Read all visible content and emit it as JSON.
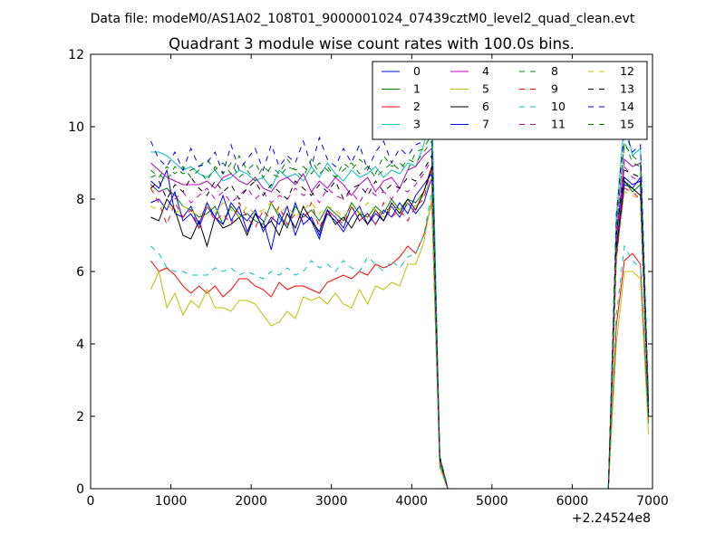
{
  "supertitle": "Data file: modeM0/AS1A02_108T01_9000001024_07439cztM0_level2_quad_clean.evt",
  "chart_data": {
    "type": "line",
    "title": "Quadrant 3 module wise count rates with 100.0s bins.",
    "xlabel": "",
    "ylabel": "",
    "x_offset_label": "+2.24524e8",
    "xlim": [
      0,
      7000
    ],
    "ylim": [
      0,
      12
    ],
    "xticks": [
      0,
      1000,
      2000,
      3000,
      4000,
      5000,
      6000,
      7000
    ],
    "yticks": [
      0,
      2,
      4,
      6,
      8,
      10,
      12
    ],
    "grid": false,
    "legend": {
      "placement": "top-right",
      "columns": 4
    },
    "x": [
      750,
      850,
      950,
      1050,
      1150,
      1250,
      1350,
      1450,
      1550,
      1650,
      1750,
      1850,
      1950,
      2050,
      2150,
      2250,
      2350,
      2450,
      2550,
      2650,
      2750,
      2850,
      2950,
      3050,
      3150,
      3250,
      3350,
      3450,
      3550,
      3650,
      3750,
      3850,
      3950,
      4050,
      4150,
      4250,
      4350,
      4450,
      4550,
      4650,
      4750,
      4850,
      4950,
      5050,
      5150,
      5250,
      5350,
      5450,
      5550,
      5650,
      5750,
      5850,
      5950,
      6050,
      6150,
      6250,
      6350,
      6450,
      6550,
      6650,
      6750,
      6850,
      6950
    ],
    "series": [
      {
        "name": "0",
        "color": "#0000ff",
        "style": "solid",
        "values": [
          8.5,
          8.3,
          8.8,
          7.6,
          7.5,
          7.8,
          7.3,
          7.9,
          7.5,
          8.1,
          7.4,
          7.8,
          7.1,
          7.6,
          7.4,
          6.6,
          7.6,
          7.2,
          7.9,
          7.3,
          7.5,
          7.0,
          7.6,
          7.4,
          7.1,
          7.5,
          7.8,
          7.3,
          7.6,
          7.4,
          7.8,
          7.5,
          7.9,
          7.6,
          7.9,
          8.6,
          0.8,
          0,
          0,
          0,
          0,
          0,
          0,
          0,
          0,
          0,
          0,
          0,
          0,
          0,
          0,
          0,
          0,
          0,
          0,
          0,
          0,
          0,
          6.5,
          8.4,
          8.3,
          8.6,
          2.2
        ]
      },
      {
        "name": "1",
        "color": "#008000",
        "style": "solid",
        "values": [
          8.4,
          8.2,
          8.3,
          8.1,
          7.8,
          7.7,
          7.5,
          7.6,
          7.8,
          7.3,
          7.8,
          7.5,
          7.6,
          7.4,
          7.3,
          7.9,
          7.5,
          7.2,
          7.8,
          7.5,
          7.7,
          7.4,
          7.8,
          7.6,
          7.4,
          7.9,
          7.6,
          7.5,
          7.8,
          7.6,
          8.0,
          7.7,
          8.0,
          7.9,
          8.2,
          8.8,
          0.7,
          0,
          0,
          0,
          0,
          0,
          0,
          0,
          0,
          0,
          0,
          0,
          0,
          0,
          0,
          0,
          0,
          0,
          0,
          0,
          0,
          0,
          6.3,
          8.5,
          8.2,
          8.4,
          2.1
        ]
      },
      {
        "name": "2",
        "color": "#ff0000",
        "style": "solid",
        "values": [
          6.3,
          6.0,
          6.1,
          5.9,
          5.6,
          5.4,
          5.6,
          5.4,
          5.6,
          5.3,
          5.5,
          5.8,
          5.8,
          5.6,
          5.5,
          5.3,
          5.7,
          5.5,
          5.6,
          5.6,
          5.5,
          5.4,
          5.7,
          5.8,
          5.9,
          5.8,
          6.0,
          5.9,
          6.2,
          6.1,
          6.2,
          6.4,
          6.7,
          6.5,
          7.0,
          7.9,
          0.6,
          0,
          0,
          0,
          0,
          0,
          0,
          0,
          0,
          0,
          0,
          0,
          0,
          0,
          0,
          0,
          0,
          0,
          0,
          0,
          0,
          0,
          4.5,
          6.3,
          6.5,
          6.2,
          1.8
        ]
      },
      {
        "name": "3",
        "color": "#00bfbf",
        "style": "solid",
        "values": [
          9.3,
          9.3,
          9.2,
          9.0,
          8.8,
          8.9,
          8.7,
          8.6,
          8.8,
          8.5,
          8.6,
          8.8,
          8.7,
          8.5,
          8.6,
          8.3,
          8.8,
          8.6,
          8.7,
          8.5,
          8.9,
          8.6,
          9.0,
          8.7,
          8.5,
          8.8,
          8.6,
          8.7,
          8.9,
          8.6,
          8.8,
          8.7,
          9.0,
          8.9,
          9.5,
          10.8,
          0.9,
          0,
          0,
          0,
          0,
          0,
          0,
          0,
          0,
          0,
          0,
          0,
          0,
          0,
          0,
          0,
          0,
          0,
          0,
          0,
          0,
          0,
          7.5,
          10.2,
          9.2,
          9.4,
          2.4
        ]
      },
      {
        "name": "4",
        "color": "#bf00bf",
        "style": "solid",
        "values": [
          9.0,
          8.8,
          8.6,
          8.5,
          8.4,
          8.4,
          8.4,
          8.5,
          8.3,
          8.6,
          8.7,
          8.5,
          8.4,
          8.6,
          8.3,
          8.2,
          8.5,
          8.6,
          8.4,
          8.7,
          8.2,
          8.5,
          8.3,
          8.6,
          8.4,
          8.1,
          8.4,
          8.6,
          8.2,
          8.5,
          8.6,
          8.3,
          8.8,
          8.9,
          9.2,
          9.4,
          0.8,
          0,
          0,
          0,
          0,
          0,
          0,
          0,
          0,
          0,
          0,
          0,
          0,
          0,
          0,
          0,
          0,
          0,
          0,
          0,
          0,
          0,
          7.0,
          9.1,
          8.9,
          9.0,
          2.3
        ]
      },
      {
        "name": "5",
        "color": "#bfbf00",
        "style": "solid",
        "values": [
          5.5,
          6.0,
          5.0,
          5.4,
          4.8,
          5.2,
          5.0,
          5.5,
          5.0,
          5.0,
          4.9,
          5.2,
          5.2,
          5.1,
          4.8,
          4.5,
          4.6,
          4.9,
          4.7,
          5.3,
          5.2,
          5.3,
          5.1,
          5.4,
          5.1,
          5.0,
          5.5,
          5.1,
          5.6,
          5.5,
          5.7,
          5.6,
          6.2,
          6.2,
          6.8,
          8.0,
          0.6,
          0,
          0,
          0,
          0,
          0,
          0,
          0,
          0,
          0,
          0,
          0,
          0,
          0,
          0,
          0,
          0,
          0,
          0,
          0,
          0,
          0,
          4.0,
          6.0,
          6.0,
          5.8,
          1.5
        ]
      },
      {
        "name": "6",
        "color": "#000000",
        "style": "solid",
        "values": [
          7.5,
          7.4,
          8.0,
          7.7,
          7.0,
          6.9,
          7.4,
          6.7,
          7.5,
          7.2,
          7.3,
          7.5,
          7.0,
          7.6,
          7.2,
          7.4,
          7.0,
          7.6,
          7.2,
          7.8,
          7.4,
          7.1,
          7.7,
          7.3,
          7.5,
          7.2,
          7.6,
          7.3,
          7.7,
          7.4,
          7.9,
          7.6,
          8.0,
          7.7,
          8.2,
          8.9,
          0.8,
          0,
          0,
          0,
          0,
          0,
          0,
          0,
          0,
          0,
          0,
          0,
          0,
          0,
          0,
          0,
          0,
          0,
          0,
          0,
          0,
          0,
          6.6,
          8.5,
          8.3,
          8.1,
          2.0
        ]
      },
      {
        "name": "7",
        "color": "#0000ff",
        "style": "solid",
        "values": [
          7.9,
          8.0,
          7.7,
          8.2,
          7.4,
          7.6,
          7.2,
          7.8,
          7.5,
          7.3,
          7.9,
          7.6,
          7.4,
          7.7,
          7.1,
          7.5,
          7.3,
          7.8,
          7.0,
          7.6,
          7.4,
          6.9,
          7.7,
          7.5,
          7.2,
          7.8,
          7.4,
          7.6,
          7.3,
          7.7,
          7.5,
          7.9,
          7.6,
          8.1,
          8.4,
          8.7,
          0.8,
          0,
          0,
          0,
          0,
          0,
          0,
          0,
          0,
          0,
          0,
          0,
          0,
          0,
          0,
          0,
          0,
          0,
          0,
          0,
          0,
          0,
          6.7,
          8.6,
          8.4,
          8.5,
          2.1
        ]
      },
      {
        "name": "8",
        "color": "#008000",
        "style": "dashed",
        "values": [
          8.6,
          8.7,
          8.5,
          8.9,
          8.7,
          8.8,
          8.9,
          9.1,
          8.8,
          9.0,
          8.7,
          9.2,
          8.8,
          9.0,
          8.6,
          8.9,
          8.7,
          9.1,
          8.8,
          8.9,
          8.7,
          9.0,
          8.8,
          8.6,
          9.0,
          8.8,
          9.1,
          8.9,
          8.7,
          9.2,
          8.9,
          9.0,
          8.8,
          9.3,
          9.4,
          9.8,
          0.8,
          0,
          0,
          0,
          0,
          0,
          0,
          0,
          0,
          0,
          0,
          0,
          0,
          0,
          0,
          0,
          0,
          0,
          0,
          0,
          0,
          0,
          7.2,
          9.6,
          9.0,
          8.9,
          2.3
        ]
      },
      {
        "name": "9",
        "color": "#ff0000",
        "style": "dashed",
        "values": [
          8.3,
          7.9,
          7.3,
          7.9,
          7.5,
          7.7,
          7.2,
          7.8,
          7.4,
          7.6,
          7.3,
          7.9,
          7.5,
          7.2,
          7.7,
          7.4,
          7.8,
          7.3,
          7.6,
          7.4,
          7.9,
          7.2,
          7.7,
          7.5,
          7.3,
          7.8,
          7.4,
          7.6,
          7.3,
          7.9,
          7.5,
          7.7,
          7.4,
          7.8,
          8.0,
          8.9,
          0.8,
          0,
          0,
          0,
          0,
          0,
          0,
          0,
          0,
          0,
          0,
          0,
          0,
          0,
          0,
          0,
          0,
          0,
          0,
          0,
          0,
          0,
          6.5,
          8.3,
          8.2,
          8.0,
          2.0
        ]
      },
      {
        "name": "10",
        "color": "#00bfbf",
        "style": "dashed",
        "values": [
          6.7,
          6.5,
          6.1,
          6.0,
          6.0,
          5.9,
          5.9,
          5.9,
          6.1,
          6.0,
          6.1,
          5.9,
          6.0,
          5.9,
          5.8,
          6.0,
          5.9,
          6.1,
          5.9,
          6.0,
          6.3,
          6.1,
          6.2,
          6.0,
          6.3,
          6.1,
          6.0,
          6.4,
          6.2,
          6.0,
          6.3,
          6.1,
          6.4,
          6.5,
          7.0,
          8.2,
          0.6,
          0,
          0,
          0,
          0,
          0,
          0,
          0,
          0,
          0,
          0,
          0,
          0,
          0,
          0,
          0,
          0,
          0,
          0,
          0,
          0,
          0,
          4.8,
          6.7,
          6.3,
          6.1,
          1.8
        ]
      },
      {
        "name": "11",
        "color": "#bf00bf",
        "style": "dashed",
        "values": [
          8.4,
          8.2,
          8.3,
          8.0,
          8.2,
          7.9,
          8.1,
          8.3,
          8.0,
          8.2,
          7.9,
          8.1,
          8.3,
          8.0,
          8.2,
          7.9,
          8.1,
          8.0,
          8.3,
          8.1,
          8.2,
          7.9,
          8.3,
          8.1,
          8.0,
          8.2,
          7.9,
          8.3,
          8.1,
          8.2,
          8.0,
          8.3,
          8.2,
          8.4,
          8.7,
          9.1,
          0.8,
          0,
          0,
          0,
          0,
          0,
          0,
          0,
          0,
          0,
          0,
          0,
          0,
          0,
          0,
          0,
          0,
          0,
          0,
          0,
          0,
          0,
          6.8,
          8.9,
          8.6,
          8.5,
          2.1
        ]
      },
      {
        "name": "12",
        "color": "#bfbf00",
        "style": "dashed",
        "values": [
          7.8,
          7.7,
          7.9,
          7.6,
          7.8,
          7.7,
          7.5,
          7.8,
          7.6,
          7.9,
          7.7,
          7.5,
          7.8,
          7.6,
          7.7,
          7.9,
          7.6,
          7.8,
          7.5,
          7.7,
          7.9,
          7.6,
          7.8,
          7.7,
          7.5,
          7.8,
          7.6,
          7.9,
          7.7,
          7.5,
          7.8,
          7.7,
          7.9,
          7.8,
          8.1,
          8.6,
          0.7,
          0,
          0,
          0,
          0,
          0,
          0,
          0,
          0,
          0,
          0,
          0,
          0,
          0,
          0,
          0,
          0,
          0,
          0,
          0,
          0,
          0,
          6.3,
          8.2,
          8.1,
          8.0,
          2.0
        ]
      },
      {
        "name": "13",
        "color": "#000000",
        "style": "dashed",
        "values": [
          8.3,
          8.5,
          8.0,
          8.4,
          8.2,
          8.6,
          8.3,
          8.1,
          8.5,
          8.2,
          8.4,
          8.0,
          8.3,
          8.5,
          8.1,
          8.4,
          8.2,
          8.0,
          8.5,
          8.3,
          8.1,
          8.4,
          8.2,
          8.5,
          8.0,
          8.3,
          8.4,
          8.1,
          8.5,
          8.2,
          8.4,
          8.3,
          8.6,
          8.5,
          8.8,
          9.2,
          0.8,
          0,
          0,
          0,
          0,
          0,
          0,
          0,
          0,
          0,
          0,
          0,
          0,
          0,
          0,
          0,
          0,
          0,
          0,
          0,
          0,
          0,
          7.0,
          8.8,
          8.7,
          8.6,
          2.1
        ]
      },
      {
        "name": "14",
        "color": "#0000ff",
        "style": "dashed",
        "values": [
          9.6,
          9.1,
          8.9,
          9.3,
          8.8,
          9.4,
          8.9,
          9.0,
          9.3,
          8.7,
          9.5,
          8.8,
          9.1,
          9.4,
          8.8,
          9.5,
          8.9,
          9.2,
          9.0,
          9.6,
          8.9,
          9.7,
          9.1,
          8.9,
          9.4,
          9.0,
          9.5,
          8.8,
          9.3,
          9.6,
          9.0,
          9.4,
          9.2,
          9.5,
          9.6,
          9.9,
          0.9,
          0,
          0,
          0,
          0,
          0,
          0,
          0,
          0,
          0,
          0,
          0,
          0,
          0,
          0,
          0,
          0,
          0,
          0,
          0,
          0,
          0,
          7.6,
          9.9,
          9.3,
          9.5,
          2.4
        ]
      },
      {
        "name": "15",
        "color": "#008000",
        "style": "dashed",
        "values": [
          8.8,
          8.6,
          8.9,
          8.7,
          8.9,
          8.6,
          8.8,
          8.5,
          8.9,
          8.7,
          9.0,
          8.6,
          8.8,
          8.5,
          8.9,
          8.7,
          8.6,
          8.9,
          8.8,
          8.6,
          9.1,
          8.7,
          8.9,
          8.6,
          8.8,
          9.0,
          8.7,
          8.9,
          8.6,
          8.8,
          9.0,
          8.8,
          9.1,
          9.0,
          9.3,
          9.6,
          0.9,
          0,
          0,
          0,
          0,
          0,
          0,
          0,
          0,
          0,
          0,
          0,
          0,
          0,
          0,
          0,
          0,
          0,
          0,
          0,
          0,
          0,
          7.3,
          9.5,
          9.2,
          9.0,
          2.3
        ]
      }
    ]
  }
}
